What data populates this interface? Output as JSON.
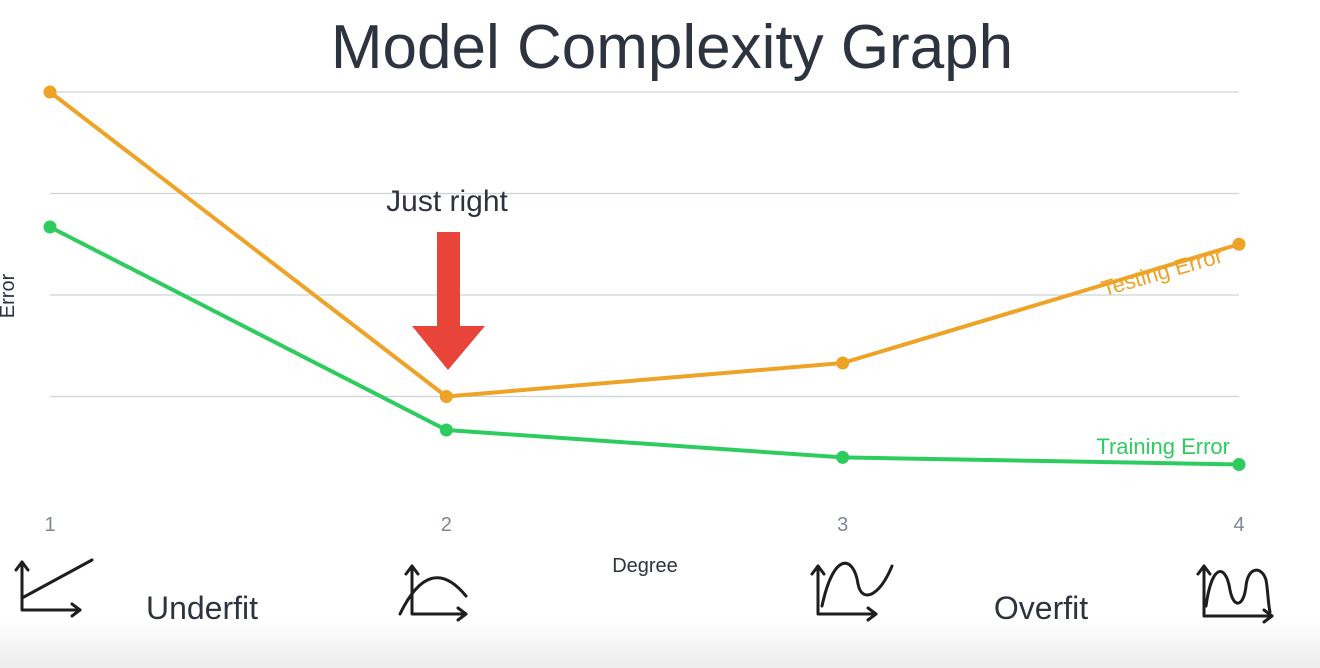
{
  "chart_data": {
    "type": "line",
    "title": "Model Complexity Graph",
    "xlabel": "Degree",
    "ylabel": "Error",
    "x": [
      1,
      2,
      3,
      4
    ],
    "ylim": [
      0,
      4
    ],
    "grid": true,
    "series": [
      {
        "name": "Testing Error",
        "color": "#eea326",
        "values": [
          4.0,
          1.0,
          1.33,
          2.5
        ]
      },
      {
        "name": "Training Error",
        "color": "#2ecc5f",
        "values": [
          2.67,
          0.67,
          0.4,
          0.33
        ]
      }
    ],
    "annotations": {
      "just_right": "Just right",
      "underfit": "Underfit",
      "overfit": "Overfit"
    },
    "arrow_color": "#e8443a",
    "icons": [
      "linear-fit-icon",
      "quadratic-fit-icon",
      "cubic-fit-icon",
      "wavy-fit-icon"
    ]
  }
}
